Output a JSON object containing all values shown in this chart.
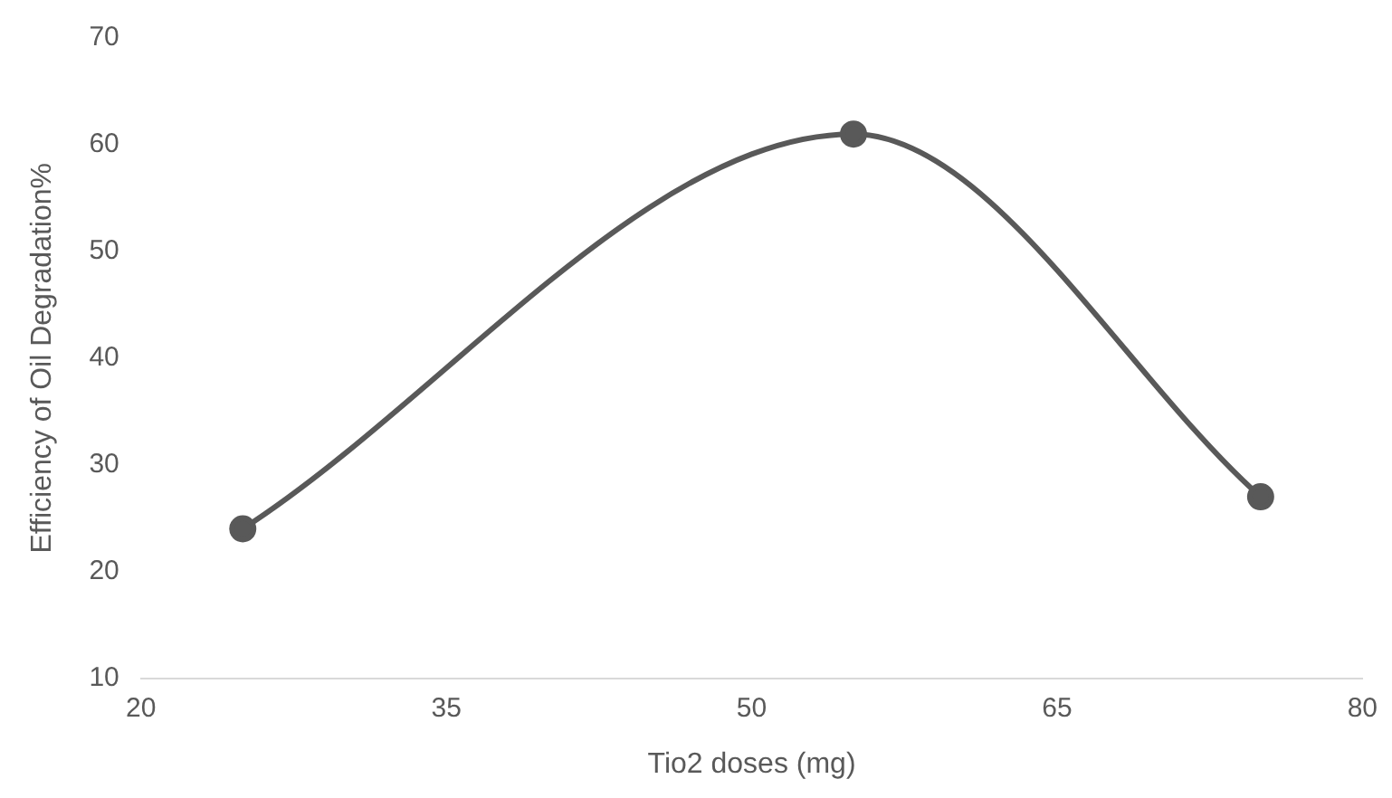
{
  "chart_data": {
    "type": "line",
    "xlabel": "Tio2 doses (mg)",
    "ylabel": "Efficiency of Oil Degradation%",
    "x": [
      25,
      55,
      75
    ],
    "series": [
      {
        "color": "#595959",
        "values": [
          24,
          61,
          27
        ]
      }
    ],
    "xlim": [
      20,
      80
    ],
    "xticks": [
      20,
      35,
      50,
      65,
      80
    ],
    "ylim": [
      10,
      70
    ],
    "yticks": [
      10,
      20,
      30,
      40,
      50,
      60,
      70
    ],
    "grid": false,
    "legend": false,
    "marker": "circle",
    "line_style": "solid"
  }
}
